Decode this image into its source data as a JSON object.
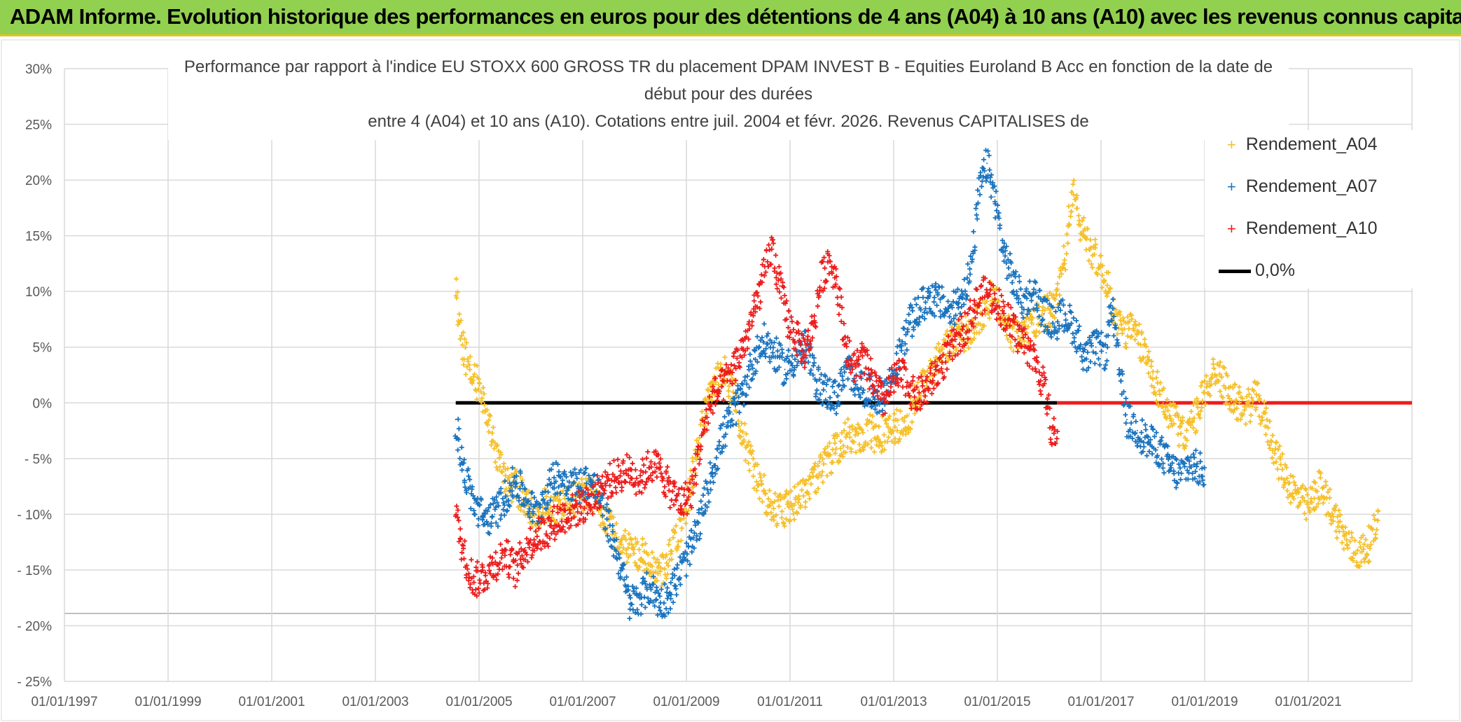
{
  "banner": {
    "text": "ADAM Informe. Evolution historique des performances en euros pour des détentions de 4 ans (A04) à 10 ans (A10) avec les revenus connus capitalisés"
  },
  "chart_data": {
    "type": "scatter",
    "title_lines": [
      "Performance par rapport à l'indice EU STOXX 600 GROSS TR  du placement DPAM INVEST B - Equities Euroland B Acc en fonction de la date de",
      "début pour des durées",
      "entre 4 (A04) et 10 ans (A10). Cotations entre juil. 2004 et févr. 2026. Revenus CAPITALISES de"
    ],
    "xlabel": "",
    "ylabel": "",
    "x_range": [
      1997.0,
      2023.0
    ],
    "ylim": [
      -25,
      30
    ],
    "yticks": [
      30,
      25,
      20,
      15,
      10,
      5,
      0,
      -5,
      -10,
      -15,
      -20,
      -25
    ],
    "ytick_labels": [
      "30%",
      "25%",
      "20%",
      "15%",
      "10%",
      "5%",
      "0%",
      "- 5%",
      "- 10%",
      "- 15%",
      "- 20%",
      "- 25%"
    ],
    "xticks": [
      1997,
      1999,
      2001,
      2003,
      2005,
      2007,
      2009,
      2011,
      2013,
      2015,
      2017,
      2019,
      2021
    ],
    "xtick_labels": [
      "01/01/1997",
      "01/01/1999",
      "01/01/2001",
      "01/01/2003",
      "01/01/2005",
      "01/01/2007",
      "01/01/2009",
      "01/01/2011",
      "01/01/2013",
      "01/01/2015",
      "01/01/2017",
      "01/01/2019",
      "01/01/2021"
    ],
    "grid": true,
    "legend_position": "top-right",
    "series": [
      {
        "name": "Rendement_A04",
        "color": "#f5c02a",
        "points": [
          [
            2004.55,
            10.0
          ],
          [
            2004.65,
            6.0
          ],
          [
            2004.8,
            3.0
          ],
          [
            2005.0,
            1.5
          ],
          [
            2005.2,
            -1.5
          ],
          [
            2005.35,
            -5.0
          ],
          [
            2005.5,
            -7.0
          ],
          [
            2005.7,
            -7.5
          ],
          [
            2005.9,
            -9.0
          ],
          [
            2006.1,
            -10.0
          ],
          [
            2006.3,
            -9.0
          ],
          [
            2006.5,
            -9.5
          ],
          [
            2006.7,
            -9.0
          ],
          [
            2006.9,
            -8.5
          ],
          [
            2007.1,
            -8.0
          ],
          [
            2007.3,
            -9.0
          ],
          [
            2007.5,
            -11.0
          ],
          [
            2007.7,
            -12.0
          ],
          [
            2007.9,
            -13.0
          ],
          [
            2008.1,
            -13.5
          ],
          [
            2008.3,
            -14.5
          ],
          [
            2008.5,
            -15.5
          ],
          [
            2008.7,
            -13.5
          ],
          [
            2008.9,
            -11.5
          ],
          [
            2009.1,
            -7.0
          ],
          [
            2009.3,
            -2.0
          ],
          [
            2009.5,
            1.5
          ],
          [
            2009.7,
            3.0
          ],
          [
            2009.9,
            1.0
          ],
          [
            2010.1,
            -3.0
          ],
          [
            2010.3,
            -6.0
          ],
          [
            2010.5,
            -8.0
          ],
          [
            2010.7,
            -9.5
          ],
          [
            2010.9,
            -9.5
          ],
          [
            2011.1,
            -9.0
          ],
          [
            2011.3,
            -8.0
          ],
          [
            2011.5,
            -6.5
          ],
          [
            2011.7,
            -5.5
          ],
          [
            2011.9,
            -4.0
          ],
          [
            2012.1,
            -3.0
          ],
          [
            2012.3,
            -3.0
          ],
          [
            2012.5,
            -2.5
          ],
          [
            2012.7,
            -3.0
          ],
          [
            2012.9,
            -2.5
          ],
          [
            2013.1,
            -2.0
          ],
          [
            2013.3,
            -1.0
          ],
          [
            2013.5,
            1.0
          ],
          [
            2013.7,
            2.5
          ],
          [
            2013.9,
            4.0
          ],
          [
            2014.1,
            5.5
          ],
          [
            2014.3,
            6.0
          ],
          [
            2014.5,
            6.5
          ],
          [
            2014.7,
            8.0
          ],
          [
            2014.9,
            9.5
          ],
          [
            2015.1,
            8.0
          ],
          [
            2015.3,
            6.0
          ],
          [
            2015.5,
            6.5
          ],
          [
            2015.7,
            7.0
          ],
          [
            2015.9,
            8.0
          ],
          [
            2016.1,
            8.5
          ],
          [
            2016.3,
            13.0
          ],
          [
            2016.45,
            19.0
          ],
          [
            2016.6,
            16.0
          ],
          [
            2016.8,
            14.0
          ],
          [
            2016.95,
            12.5
          ],
          [
            2017.1,
            11.0
          ],
          [
            2017.25,
            8.0
          ],
          [
            2017.4,
            6.5
          ],
          [
            2017.6,
            6.5
          ],
          [
            2017.8,
            5.0
          ],
          [
            2018.0,
            2.5
          ],
          [
            2018.2,
            0.0
          ],
          [
            2018.4,
            -1.5
          ],
          [
            2018.6,
            -3.0
          ],
          [
            2018.8,
            -1.5
          ],
          [
            2019.0,
            1.0
          ],
          [
            2019.2,
            3.0
          ],
          [
            2019.4,
            1.5
          ],
          [
            2019.6,
            0.0
          ],
          [
            2019.8,
            -0.5
          ],
          [
            2020.0,
            0.5
          ],
          [
            2020.2,
            -2.0
          ],
          [
            2020.4,
            -5.0
          ],
          [
            2020.6,
            -7.0
          ],
          [
            2020.8,
            -8.5
          ],
          [
            2021.0,
            -9.5
          ],
          [
            2021.2,
            -7.5
          ],
          [
            2021.4,
            -9.0
          ],
          [
            2021.6,
            -11.0
          ],
          [
            2021.8,
            -13.0
          ],
          [
            2022.0,
            -13.5
          ],
          [
            2022.2,
            -12.5
          ],
          [
            2022.35,
            -10.5
          ]
        ]
      },
      {
        "name": "Rendement_A07",
        "color": "#1a73be",
        "points": [
          [
            2004.55,
            -1.5
          ],
          [
            2004.7,
            -6.0
          ],
          [
            2004.9,
            -9.0
          ],
          [
            2005.1,
            -10.5
          ],
          [
            2005.3,
            -10.0
          ],
          [
            2005.5,
            -8.5
          ],
          [
            2005.7,
            -7.0
          ],
          [
            2005.9,
            -8.5
          ],
          [
            2006.1,
            -10.0
          ],
          [
            2006.3,
            -8.0
          ],
          [
            2006.5,
            -6.5
          ],
          [
            2006.7,
            -7.0
          ],
          [
            2006.9,
            -7.5
          ],
          [
            2007.1,
            -7.0
          ],
          [
            2007.3,
            -8.0
          ],
          [
            2007.5,
            -11.0
          ],
          [
            2007.7,
            -14.0
          ],
          [
            2007.9,
            -18.0
          ],
          [
            2008.1,
            -17.5
          ],
          [
            2008.3,
            -16.5
          ],
          [
            2008.5,
            -18.0
          ],
          [
            2008.7,
            -17.0
          ],
          [
            2008.9,
            -15.0
          ],
          [
            2009.1,
            -13.0
          ],
          [
            2009.3,
            -10.0
          ],
          [
            2009.5,
            -6.0
          ],
          [
            2009.7,
            -3.0
          ],
          [
            2009.9,
            -1.0
          ],
          [
            2010.1,
            1.0
          ],
          [
            2010.3,
            4.0
          ],
          [
            2010.5,
            5.5
          ],
          [
            2010.7,
            4.5
          ],
          [
            2010.9,
            3.0
          ],
          [
            2011.1,
            4.0
          ],
          [
            2011.3,
            5.0
          ],
          [
            2011.5,
            2.0
          ],
          [
            2011.7,
            1.0
          ],
          [
            2011.9,
            0.5
          ],
          [
            2012.1,
            3.0
          ],
          [
            2012.3,
            2.0
          ],
          [
            2012.5,
            1.0
          ],
          [
            2012.7,
            0.5
          ],
          [
            2012.9,
            1.5
          ],
          [
            2013.1,
            4.0
          ],
          [
            2013.3,
            7.0
          ],
          [
            2013.5,
            8.5
          ],
          [
            2013.7,
            9.5
          ],
          [
            2013.9,
            9.0
          ],
          [
            2014.1,
            8.0
          ],
          [
            2014.3,
            9.5
          ],
          [
            2014.5,
            12.0
          ],
          [
            2014.65,
            19.0
          ],
          [
            2014.8,
            21.5
          ],
          [
            2014.95,
            18.5
          ],
          [
            2015.1,
            14.0
          ],
          [
            2015.3,
            11.0
          ],
          [
            2015.5,
            9.0
          ],
          [
            2015.7,
            10.0
          ],
          [
            2015.9,
            8.0
          ],
          [
            2016.1,
            7.0
          ],
          [
            2016.3,
            8.0
          ],
          [
            2016.5,
            6.5
          ],
          [
            2016.7,
            4.0
          ],
          [
            2016.9,
            5.0
          ],
          [
            2017.1,
            4.5
          ],
          [
            2017.2,
            9.0
          ],
          [
            2017.35,
            3.0
          ],
          [
            2017.5,
            -1.5
          ],
          [
            2017.7,
            -2.5
          ],
          [
            2017.9,
            -3.5
          ],
          [
            2018.1,
            -4.0
          ],
          [
            2018.3,
            -5.5
          ],
          [
            2018.5,
            -6.5
          ],
          [
            2018.7,
            -5.5
          ],
          [
            2018.9,
            -6.0
          ],
          [
            2019.0,
            -6.0
          ]
        ]
      },
      {
        "name": "Rendement_A10",
        "color": "#ed1c1c",
        "points": [
          [
            2004.55,
            -10.0
          ],
          [
            2004.7,
            -13.5
          ],
          [
            2004.9,
            -16.0
          ],
          [
            2005.1,
            -15.5
          ],
          [
            2005.3,
            -14.5
          ],
          [
            2005.5,
            -13.5
          ],
          [
            2005.7,
            -15.0
          ],
          [
            2005.9,
            -13.0
          ],
          [
            2006.1,
            -12.0
          ],
          [
            2006.3,
            -11.5
          ],
          [
            2006.5,
            -10.5
          ],
          [
            2006.7,
            -10.0
          ],
          [
            2006.9,
            -9.5
          ],
          [
            2007.1,
            -9.0
          ],
          [
            2007.3,
            -8.0
          ],
          [
            2007.5,
            -7.0
          ],
          [
            2007.7,
            -6.5
          ],
          [
            2007.9,
            -6.0
          ],
          [
            2008.1,
            -7.0
          ],
          [
            2008.3,
            -5.5
          ],
          [
            2008.5,
            -6.0
          ],
          [
            2008.7,
            -8.0
          ],
          [
            2008.9,
            -9.0
          ],
          [
            2009.1,
            -8.0
          ],
          [
            2009.3,
            -3.0
          ],
          [
            2009.5,
            0.5
          ],
          [
            2009.7,
            1.5
          ],
          [
            2009.9,
            3.0
          ],
          [
            2010.1,
            5.0
          ],
          [
            2010.3,
            8.0
          ],
          [
            2010.5,
            11.5
          ],
          [
            2010.65,
            14.0
          ],
          [
            2010.8,
            10.5
          ],
          [
            2010.95,
            7.5
          ],
          [
            2011.1,
            6.0
          ],
          [
            2011.3,
            4.5
          ],
          [
            2011.45,
            7.0
          ],
          [
            2011.6,
            11.0
          ],
          [
            2011.75,
            13.0
          ],
          [
            2011.9,
            11.0
          ],
          [
            2012.05,
            6.0
          ],
          [
            2012.2,
            3.0
          ],
          [
            2012.4,
            4.0
          ],
          [
            2012.6,
            2.0
          ],
          [
            2012.8,
            0.0
          ],
          [
            2013.0,
            2.0
          ],
          [
            2013.2,
            2.5
          ],
          [
            2013.4,
            0.5
          ],
          [
            2013.6,
            1.0
          ],
          [
            2013.8,
            2.5
          ],
          [
            2014.0,
            4.0
          ],
          [
            2014.2,
            5.5
          ],
          [
            2014.4,
            7.0
          ],
          [
            2014.6,
            9.0
          ],
          [
            2014.8,
            10.0
          ],
          [
            2015.0,
            9.0
          ],
          [
            2015.2,
            7.5
          ],
          [
            2015.4,
            6.0
          ],
          [
            2015.6,
            5.0
          ],
          [
            2015.8,
            3.0
          ],
          [
            2015.95,
            0.5
          ],
          [
            2016.05,
            -2.5
          ],
          [
            2016.15,
            -3.5
          ]
        ]
      }
    ],
    "reference_lines": [
      {
        "name": "0,0%",
        "color": "#000000",
        "from": 2004.55,
        "to": 2016.15,
        "y": 0
      },
      {
        "name": "Rendement_A10 flat",
        "color": "#ed1c1c",
        "from": 2016.15,
        "to": 2023.0,
        "y": 0
      }
    ]
  },
  "legend": [
    {
      "label": "Rendement_A04",
      "color": "#f5c02a",
      "symbol": "+"
    },
    {
      "label": "Rendement_A07",
      "color": "#1a73be",
      "symbol": "+"
    },
    {
      "label": "Rendement_A10",
      "color": "#ed1c1c",
      "symbol": "+"
    },
    {
      "label": "0,0%",
      "color": "#000000",
      "symbol": "line"
    }
  ]
}
